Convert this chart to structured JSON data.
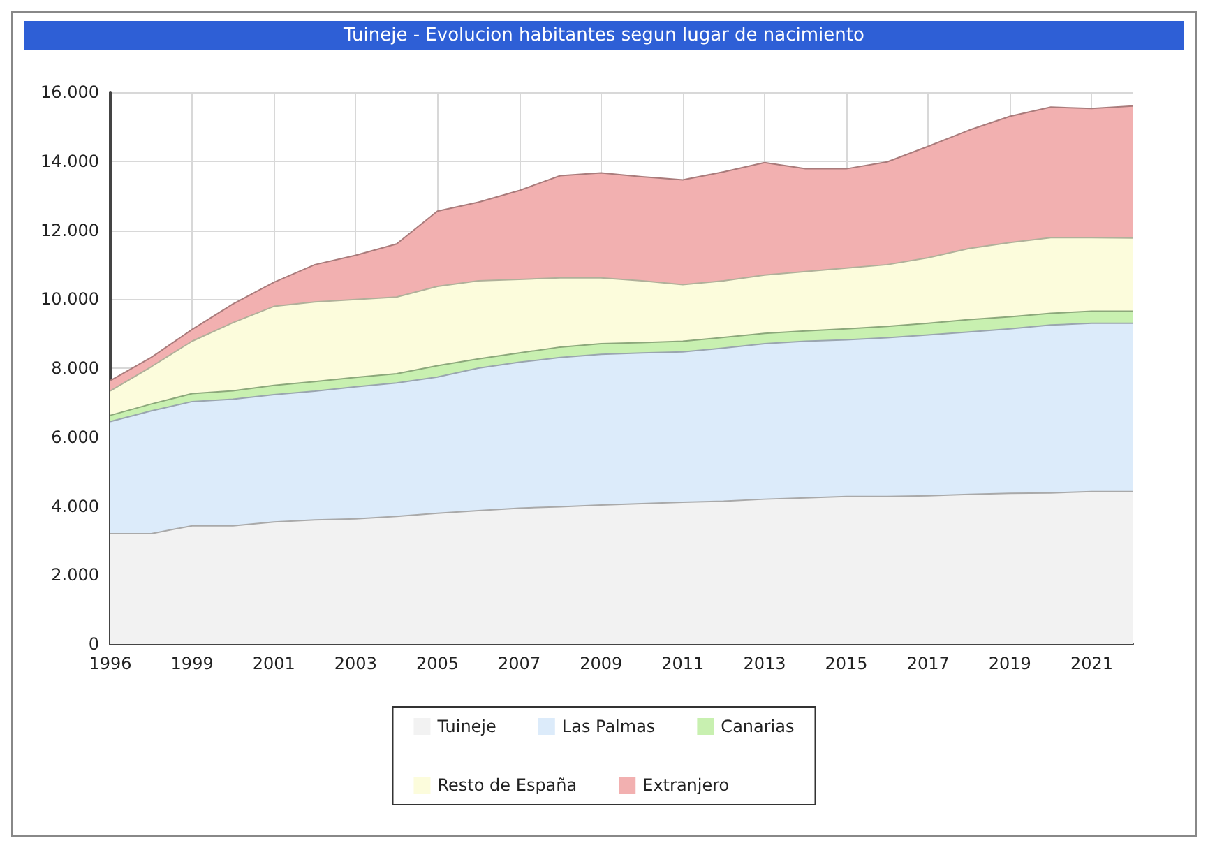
{
  "chart_data": {
    "type": "area",
    "stacked": true,
    "title": "Tuineje - Evolucion habitantes segun lugar de nacimiento",
    "categories": [
      "1996",
      null,
      "1999",
      null,
      "2001",
      null,
      "2003",
      null,
      "2005",
      null,
      "2007",
      null,
      "2009",
      null,
      "2011",
      null,
      "2013",
      null,
      "2015",
      null,
      "2017",
      null,
      "2019",
      null,
      "2021",
      null
    ],
    "series": [
      {
        "name": "Tuineje",
        "color": "#f2f2f2",
        "values": [
          3200,
          3200,
          3430,
          3430,
          3540,
          3600,
          3630,
          3700,
          3790,
          3870,
          3940,
          3980,
          4030,
          4070,
          4110,
          4140,
          4200,
          4240,
          4280,
          4280,
          4300,
          4340,
          4370,
          4380,
          4420,
          4420
        ]
      },
      {
        "name": "Las Palmas",
        "color": "#dcebfa",
        "values": [
          3250,
          3560,
          3600,
          3670,
          3690,
          3730,
          3830,
          3870,
          3950,
          4130,
          4230,
          4330,
          4370,
          4370,
          4360,
          4440,
          4510,
          4540,
          4540,
          4600,
          4660,
          4710,
          4770,
          4870,
          4880,
          4880
        ]
      },
      {
        "name": "Canarias",
        "color": "#c8f0b0",
        "values": [
          180,
          200,
          230,
          240,
          270,
          280,
          270,
          270,
          330,
          270,
          270,
          300,
          310,
          300,
          310,
          310,
          300,
          300,
          320,
          330,
          340,
          360,
          350,
          340,
          350,
          350
        ]
      },
      {
        "name": "Resto de España",
        "color": "#fcfcdc",
        "values": [
          710,
          1080,
          1520,
          1980,
          2290,
          2310,
          2260,
          2220,
          2300,
          2260,
          2130,
          2010,
          1910,
          1790,
          1640,
          1640,
          1690,
          1720,
          1760,
          1790,
          1900,
          2060,
          2150,
          2190,
          2130,
          2120
        ]
      },
      {
        "name": "Extranjero",
        "color": "#f2b0b0",
        "values": [
          300,
          270,
          340,
          540,
          700,
          1080,
          1280,
          1540,
          2180,
          2280,
          2580,
          2960,
          3040,
          3020,
          3040,
          3160,
          3260,
          2980,
          2880,
          2980,
          3230,
          3430,
          3660,
          3790,
          3750,
          3830
        ]
      }
    ],
    "ylim": [
      0,
      16000
    ],
    "yticks": [
      0,
      {
        "value": 2000,
        "label": "2.000"
      },
      {
        "value": 4000,
        "label": "4.000"
      },
      {
        "value": 6000,
        "label": "6.000"
      },
      {
        "value": 8000,
        "label": "8.000"
      },
      {
        "value": 10000,
        "label": "10.000"
      },
      {
        "value": 12000,
        "label": "12.000"
      },
      {
        "value": 14000,
        "label": "14.000"
      },
      {
        "value": 16000,
        "label": "16.000"
      }
    ],
    "grid": true,
    "legend": "bottom"
  }
}
